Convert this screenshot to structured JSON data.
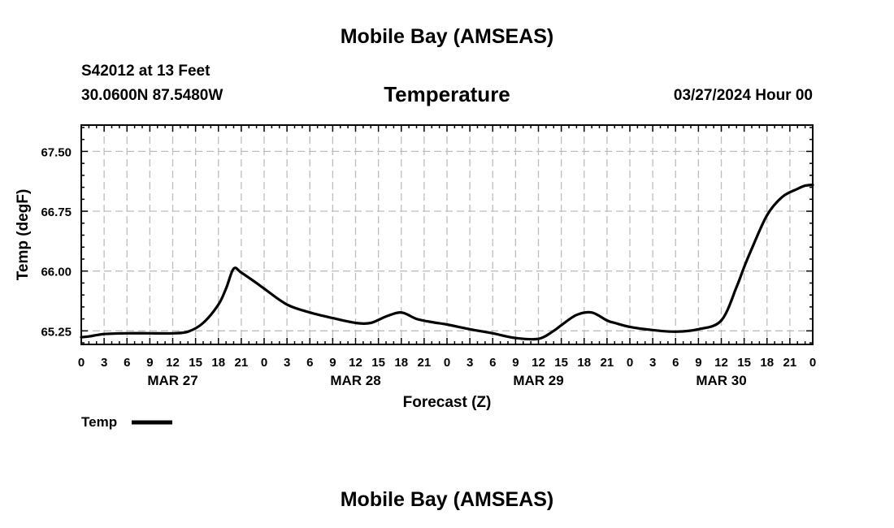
{
  "header": {
    "title": "Mobile Bay (AMSEAS)",
    "station": "S42012 at 13 Feet",
    "location": "30.0600N  87.5480W",
    "variable": "Temperature",
    "run": "03/27/2024 Hour 00"
  },
  "footer": {
    "title": "Mobile Bay (AMSEAS)"
  },
  "chart_data": {
    "type": "line",
    "title": "Temperature",
    "xlabel": "Forecast (Z)",
    "ylabel": "Temp (degF)",
    "x_units": "hours from 03/27/2024 00Z",
    "xlim": [
      0,
      96
    ],
    "ylim": [
      65.08,
      67.83
    ],
    "yticks": [
      65.25,
      66.0,
      66.75,
      67.5
    ],
    "ytick_labels": [
      "65.25",
      "66.00",
      "66.75",
      "67.50"
    ],
    "xtick_labels": [
      "0",
      "3",
      "6",
      "9",
      "12",
      "15",
      "18",
      "21",
      "0",
      "3",
      "6",
      "9",
      "12",
      "15",
      "18",
      "21",
      "0",
      "3",
      "6",
      "9",
      "12",
      "15",
      "18",
      "21",
      "0",
      "3",
      "6",
      "9",
      "12",
      "15",
      "18",
      "21",
      "0"
    ],
    "date_labels": [
      {
        "label": "MAR 27",
        "hour": 12
      },
      {
        "label": "MAR 28",
        "hour": 36
      },
      {
        "label": "MAR 29",
        "hour": 60
      },
      {
        "label": "MAR 30",
        "hour": 84
      }
    ],
    "grid": true,
    "legend": "bottom-left",
    "series": [
      {
        "name": "Temp",
        "color": "#000000",
        "x": [
          0,
          1,
          3,
          6,
          9,
          12,
          14,
          16,
          18,
          19,
          20,
          21,
          23,
          24,
          27,
          30,
          33,
          36,
          38,
          40,
          42,
          44,
          46,
          48,
          51,
          54,
          57,
          60,
          62,
          63,
          65,
          67,
          69,
          70,
          72,
          75,
          78,
          81,
          84,
          86,
          87,
          88,
          90,
          92,
          94,
          95,
          96
        ],
        "y": [
          65.17,
          65.18,
          65.21,
          65.22,
          65.22,
          65.22,
          65.24,
          65.35,
          65.58,
          65.78,
          66.03,
          65.98,
          65.85,
          65.78,
          65.58,
          65.48,
          65.41,
          65.35,
          65.35,
          65.43,
          65.48,
          65.4,
          65.36,
          65.33,
          65.27,
          65.22,
          65.16,
          65.15,
          65.25,
          65.32,
          65.45,
          65.48,
          65.38,
          65.35,
          65.3,
          65.26,
          65.24,
          65.27,
          65.38,
          65.8,
          66.05,
          66.28,
          66.7,
          66.93,
          67.03,
          67.07,
          67.08
        ]
      }
    ]
  }
}
